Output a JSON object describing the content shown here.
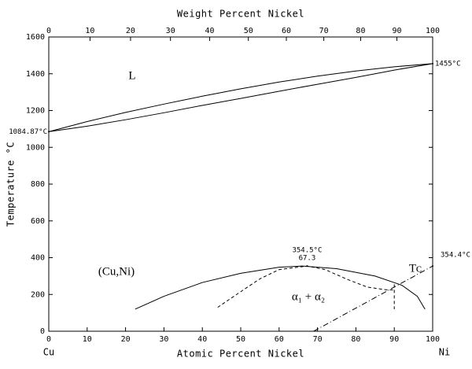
{
  "chart_data": {
    "type": "line",
    "title_top": "Weight Percent Nickel",
    "xlabel": "Atomic Percent Nickel",
    "ylabel": "Temperature °C",
    "xlim": [
      0,
      100
    ],
    "xticks": [
      0,
      10,
      20,
      30,
      40,
      50,
      60,
      70,
      80,
      90,
      100
    ],
    "x2ticks": [
      {
        "value": 0,
        "label": "0"
      },
      {
        "value": 10.74,
        "label": "10"
      },
      {
        "value": 21.3,
        "label": "20"
      },
      {
        "value": 31.7,
        "label": "30"
      },
      {
        "value": 41.92,
        "label": "40"
      },
      {
        "value": 51.99,
        "label": "50"
      },
      {
        "value": 61.89,
        "label": "60"
      },
      {
        "value": 71.64,
        "label": "70"
      },
      {
        "value": 81.24,
        "label": "80"
      },
      {
        "value": 90.69,
        "label": "90"
      },
      {
        "value": 100,
        "label": "100"
      }
    ],
    "ylim": [
      0,
      1600
    ],
    "yticks": [
      0,
      200,
      400,
      600,
      800,
      1000,
      1200,
      1400,
      1600
    ],
    "corner_labels": [
      "Cu",
      "Ni"
    ],
    "annotations": [
      "L",
      "(Cu,Ni)",
      "α₁ + α₂",
      "Tᴄ"
    ],
    "series": [
      {
        "color": "#000",
        "dash": "solid",
        "x": [
          0,
          10,
          20,
          30,
          40,
          50,
          60,
          70,
          80,
          90,
          100
        ],
        "values": [
          1084.87,
          1140,
          1190,
          1235,
          1278,
          1318,
          1355,
          1387,
          1415,
          1438,
          1455
        ]
      },
      {
        "color": "#000",
        "dash": "solid",
        "x": [
          0,
          10,
          20,
          30,
          40,
          50,
          60,
          70,
          80,
          90,
          100
        ],
        "values": [
          1084.87,
          1115,
          1150,
          1188,
          1228,
          1266,
          1305,
          1343,
          1380,
          1420,
          1455
        ]
      },
      {
        "color": "#000",
        "dash": "solid",
        "x": [
          22.5,
          30,
          40,
          50,
          60,
          66,
          75,
          85,
          92,
          96,
          98
        ],
        "values": [
          120,
          190,
          265,
          315,
          348,
          354.5,
          340,
          300,
          250,
          190,
          120
        ]
      },
      {
        "color": "#000",
        "dash": "dashed",
        "x": [
          44,
          50,
          55,
          60,
          67.3,
          72,
          78,
          83,
          88,
          90
        ],
        "values": [
          130,
          215,
          285,
          335,
          354.5,
          335,
          280,
          240,
          225,
          225
        ]
      },
      {
        "color": "#000",
        "dash": "dashed",
        "x": [
          90,
          90
        ],
        "values": [
          255,
          120
        ]
      },
      {
        "color": "#000",
        "dash": "dashdot",
        "x": [
          69,
          100
        ],
        "values": [
          0,
          354.4
        ]
      }
    ],
    "points": [
      {
        "label": "1084.87°C",
        "x": 0,
        "y": 1084.87
      },
      {
        "label": "1455°C",
        "x": 100,
        "y": 1455
      },
      {
        "label": "354.5°C",
        "x_label": "67.3",
        "x": 67.3,
        "y": 354.5
      },
      {
        "label": "354.4°C",
        "x": 100,
        "y": 354.4
      }
    ]
  }
}
